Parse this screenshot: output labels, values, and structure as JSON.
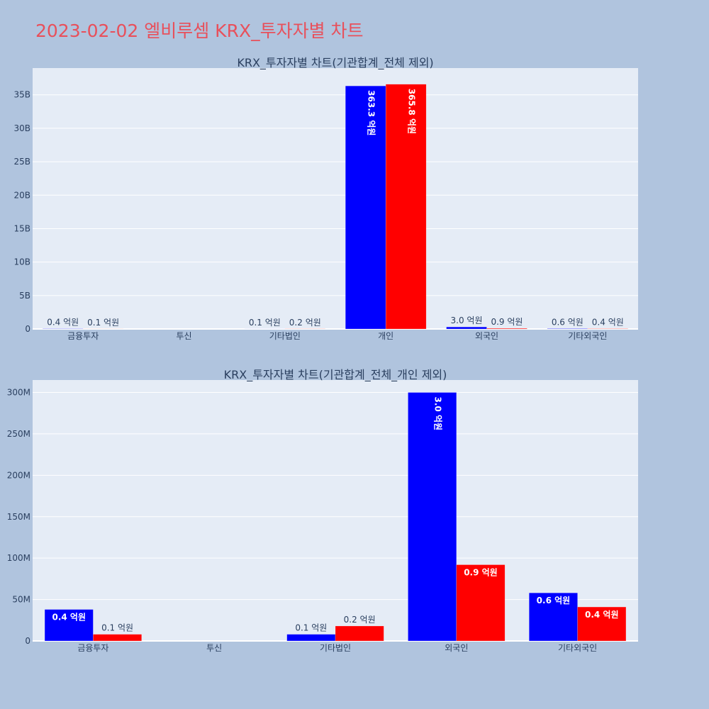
{
  "page_title": "2023-02-02 엘비루셈 KRX_투자자별 차트",
  "colors": {
    "buy": "#0000ff",
    "sell": "#ff0000",
    "plot_bg": "#e5ecf6",
    "page_bg": "#b0c4de",
    "title": "#e8505b"
  },
  "chart_data": [
    {
      "type": "bar",
      "title": "KRX_투자자별 차트(기관합계_전체 제외)",
      "categories": [
        "금융투자",
        "투신",
        "기타법인",
        "개인",
        "외국인",
        "기타외국인"
      ],
      "series": [
        {
          "values": [
            38000000,
            0,
            8000000,
            36330000000,
            300000000,
            58000000
          ],
          "labels": [
            "0.4 억원",
            "",
            "0.1 억원",
            "363.3 억원",
            "3.0 억원",
            "0.6 억원"
          ]
        },
        {
          "values": [
            8000000,
            0,
            18000000,
            36580000000,
            92000000,
            41000000
          ],
          "labels": [
            "0.1 억원",
            "",
            "0.2 억원",
            "365.8 억원",
            "0.9 억원",
            "0.4 억원"
          ]
        }
      ],
      "ylim": [
        0,
        39000000000
      ],
      "yticks": [
        0,
        5000000000,
        10000000000,
        15000000000,
        20000000000,
        25000000000,
        30000000000,
        35000000000
      ],
      "ytick_labels": [
        "0",
        "5B",
        "10B",
        "15B",
        "20B",
        "25B",
        "30B",
        "35B"
      ],
      "grid": true
    },
    {
      "type": "bar",
      "title": "KRX_투자자별 차트(기관합계_전체_개인 제외)",
      "categories": [
        "금융투자",
        "투신",
        "기타법인",
        "외국인",
        "기타외국인"
      ],
      "series": [
        {
          "values": [
            38000000,
            0,
            8000000,
            300000000,
            58000000
          ],
          "labels": [
            "0.4 억원",
            "",
            "0.1 억원",
            "3.0 억원",
            "0.6 억원"
          ]
        },
        {
          "values": [
            8000000,
            0,
            18000000,
            92000000,
            41000000
          ],
          "labels": [
            "0.1 억원",
            "",
            "0.2 억원",
            "0.9 억원",
            "0.4 억원"
          ]
        }
      ],
      "ylim": [
        0,
        315000000
      ],
      "yticks": [
        0,
        50000000,
        100000000,
        150000000,
        200000000,
        250000000,
        300000000
      ],
      "ytick_labels": [
        "0",
        "50M",
        "100M",
        "150M",
        "200M",
        "250M",
        "300M"
      ],
      "grid": true
    }
  ]
}
